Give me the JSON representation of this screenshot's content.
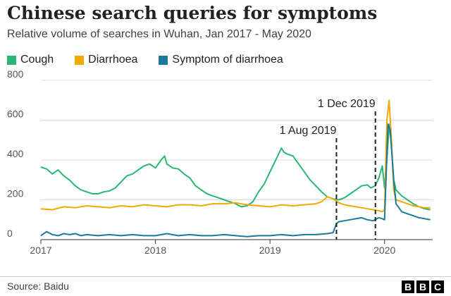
{
  "title": "Chinese search queries for symptoms",
  "subtitle": "Relative volume of searches in Wuhan, Jan 2017 - May 2020",
  "source": "Source: Baidu",
  "logo": [
    "B",
    "B",
    "C"
  ],
  "chart_data": {
    "type": "line",
    "title": "Chinese search queries for symptoms",
    "subtitle": "Relative volume of searches in Wuhan, Jan 2017 - May 2020",
    "xlabel": "",
    "ylabel": "",
    "xlim": [
      2017.0,
      2020.42
    ],
    "ylim": [
      0,
      800
    ],
    "y_ticks": [
      0,
      200,
      400,
      600,
      800
    ],
    "x_ticks": [
      {
        "value": 2017,
        "label": "2017"
      },
      {
        "value": 2018,
        "label": "2018"
      },
      {
        "value": 2019,
        "label": "2019"
      },
      {
        "value": 2020,
        "label": "2020"
      }
    ],
    "grid": true,
    "legend_position": "top-left",
    "annotations": [
      {
        "x": 2019.58,
        "label": "1 Aug 2019"
      },
      {
        "x": 2019.92,
        "label": "1 Dec 2019"
      }
    ],
    "series": [
      {
        "name": "Cough",
        "color": "#2bb673",
        "x": [
          2017.0,
          2017.05,
          2017.1,
          2017.15,
          2017.2,
          2017.25,
          2017.3,
          2017.35,
          2017.4,
          2017.45,
          2017.5,
          2017.55,
          2017.6,
          2017.65,
          2017.7,
          2017.75,
          2017.8,
          2017.85,
          2017.9,
          2017.95,
          2018.0,
          2018.05,
          2018.08,
          2018.1,
          2018.15,
          2018.2,
          2018.25,
          2018.3,
          2018.35,
          2018.4,
          2018.45,
          2018.5,
          2018.55,
          2018.6,
          2018.65,
          2018.7,
          2018.75,
          2018.8,
          2018.85,
          2018.9,
          2018.95,
          2019.0,
          2019.05,
          2019.1,
          2019.12,
          2019.15,
          2019.2,
          2019.25,
          2019.3,
          2019.35,
          2019.4,
          2019.45,
          2019.5,
          2019.55,
          2019.6,
          2019.65,
          2019.7,
          2019.75,
          2019.8,
          2019.85,
          2019.88,
          2019.92,
          2019.95,
          2019.98,
          2020.0,
          2020.02,
          2020.04,
          2020.06,
          2020.08,
          2020.1,
          2020.15,
          2020.2,
          2020.25,
          2020.3,
          2020.35,
          2020.4
        ],
        "values": [
          365,
          355,
          330,
          350,
          320,
          300,
          270,
          250,
          240,
          230,
          230,
          240,
          245,
          260,
          290,
          320,
          330,
          350,
          370,
          380,
          360,
          400,
          420,
          380,
          360,
          355,
          330,
          310,
          270,
          250,
          230,
          220,
          210,
          200,
          190,
          180,
          165,
          170,
          190,
          240,
          280,
          340,
          400,
          460,
          440,
          430,
          420,
          380,
          340,
          300,
          270,
          240,
          215,
          205,
          200,
          210,
          230,
          250,
          270,
          275,
          260,
          270,
          310,
          370,
          260,
          400,
          580,
          470,
          300,
          250,
          220,
          200,
          180,
          165,
          155,
          150
        ]
      },
      {
        "name": "Diarrhoea",
        "color": "#f2a900",
        "x": [
          2017.0,
          2017.1,
          2017.2,
          2017.3,
          2017.4,
          2017.5,
          2017.6,
          2017.7,
          2017.8,
          2017.9,
          2018.0,
          2018.1,
          2018.2,
          2018.3,
          2018.4,
          2018.5,
          2018.6,
          2018.7,
          2018.8,
          2018.9,
          2019.0,
          2019.1,
          2019.2,
          2019.3,
          2019.4,
          2019.45,
          2019.5,
          2019.55,
          2019.6,
          2019.65,
          2019.7,
          2019.75,
          2019.8,
          2019.85,
          2019.9,
          2019.95,
          2019.98,
          2020.0,
          2020.02,
          2020.04,
          2020.06,
          2020.08,
          2020.1,
          2020.15,
          2020.2,
          2020.25,
          2020.3,
          2020.35,
          2020.4
        ],
        "values": [
          155,
          150,
          165,
          160,
          170,
          165,
          160,
          170,
          165,
          175,
          170,
          165,
          175,
          175,
          170,
          180,
          180,
          185,
          175,
          170,
          165,
          175,
          170,
          175,
          180,
          190,
          215,
          205,
          185,
          175,
          170,
          165,
          160,
          155,
          150,
          145,
          140,
          150,
          600,
          700,
          500,
          250,
          200,
          190,
          180,
          170,
          165,
          160,
          160
        ]
      },
      {
        "name": "Symptom of diarrhoea",
        "color": "#1b7a9a",
        "x": [
          2017.0,
          2017.05,
          2017.1,
          2017.15,
          2017.2,
          2017.25,
          2017.3,
          2017.35,
          2017.4,
          2017.5,
          2017.6,
          2017.7,
          2017.8,
          2017.9,
          2018.0,
          2018.1,
          2018.2,
          2018.3,
          2018.4,
          2018.5,
          2018.6,
          2018.7,
          2018.8,
          2018.9,
          2019.0,
          2019.1,
          2019.2,
          2019.3,
          2019.4,
          2019.5,
          2019.55,
          2019.58,
          2019.6,
          2019.65,
          2019.7,
          2019.75,
          2019.8,
          2019.85,
          2019.9,
          2019.95,
          2019.98,
          2020.0,
          2020.03,
          2020.05,
          2020.08,
          2020.1,
          2020.15,
          2020.2,
          2020.25,
          2020.3,
          2020.35,
          2020.4
        ],
        "values": [
          20,
          40,
          25,
          20,
          30,
          25,
          30,
          20,
          25,
          20,
          25,
          20,
          25,
          20,
          20,
          30,
          20,
          25,
          20,
          20,
          25,
          20,
          15,
          20,
          20,
          25,
          20,
          25,
          25,
          30,
          35,
          80,
          90,
          95,
          100,
          105,
          110,
          100,
          95,
          110,
          105,
          100,
          580,
          550,
          300,
          180,
          140,
          130,
          120,
          110,
          105,
          100
        ]
      }
    ]
  }
}
